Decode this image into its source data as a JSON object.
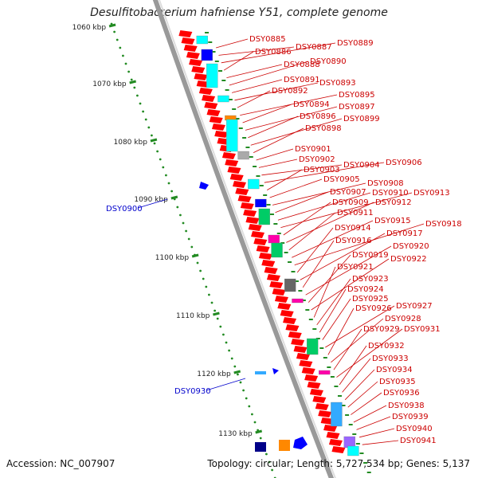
{
  "title": "Desulfitobacterium hafniense Y51, complete genome",
  "footer": {
    "accession": "Accession: NC_007907",
    "topology": "Topology: circular; Length: 5,727,534 bp; Genes: 5,137"
  },
  "scale_ticks": [
    "1060 kbp",
    "1070 kbp",
    "1080 kbp",
    "1090 kbp",
    "1100 kbp",
    "1110 kbp",
    "1120 kbp",
    "1130 kbp"
  ],
  "left_labels": [
    "DSY0900",
    "DSY0930"
  ],
  "right_labels": [
    "DSY0885",
    "DSY0887",
    "DSY0889",
    "DSY0886",
    "DSY0888",
    "DSY0890",
    "DSY0891",
    "DSY0893",
    "DSY0892",
    "DSY0895",
    "DSY0894",
    "DSY0897",
    "DSY0896",
    "DSY0899",
    "DSY0898",
    "DSY0901",
    "DSY0902",
    "DSY0904",
    "DSY0906",
    "DSY0903",
    "DSY0905",
    "DSY0908",
    "DSY0907",
    "DSY0910",
    "DSY0913",
    "DSY0909",
    "DSY0912",
    "DSY0911",
    "DSY0915",
    "DSY0918",
    "DSY0914",
    "DSY0917",
    "DSY0916",
    "DSY0920",
    "DSY0919",
    "DSY0922",
    "DSY0921",
    "DSY0923",
    "DSY0924",
    "DSY0925",
    "DSY0927",
    "DSY0926",
    "DSY0928",
    "DSY0929",
    "DSY0931",
    "DSY0932",
    "DSY0933",
    "DSY0934",
    "DSY0935",
    "DSY0936",
    "DSY0938",
    "DSY0939",
    "DSY0940",
    "DSY0941"
  ],
  "colors": {
    "gene_red": "#ff0000",
    "label_red": "#cc0000",
    "label_blue": "#0000cc",
    "backbone": "#999999",
    "tick_green": "#228b22",
    "cyan": "#00ffff",
    "blue": "#0000ff",
    "grey": "#aaaaaa"
  }
}
